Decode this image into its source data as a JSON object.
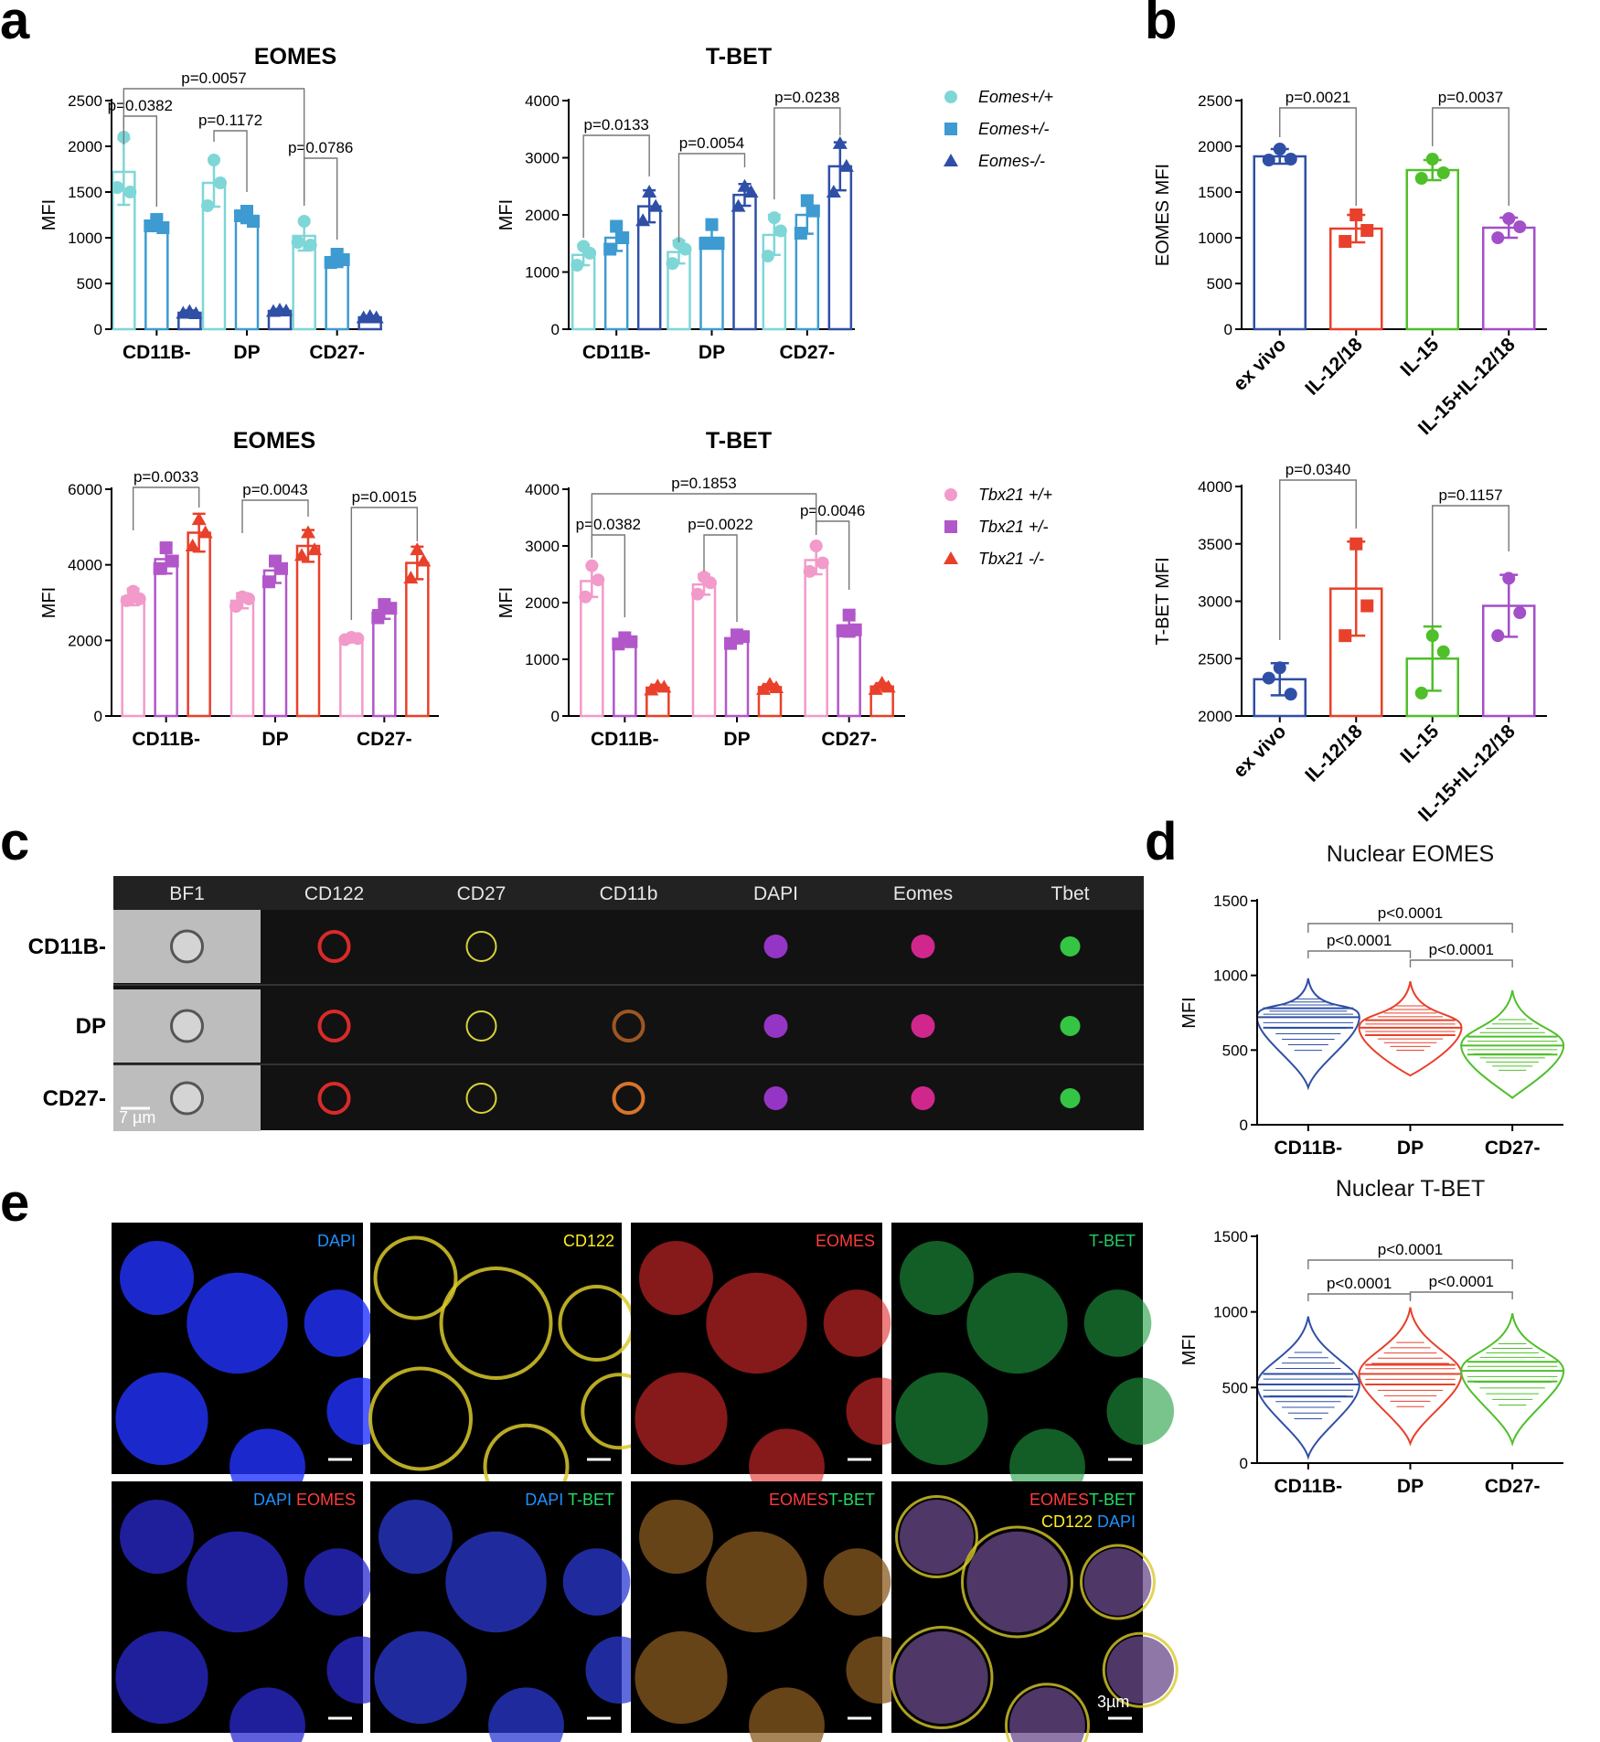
{
  "panels": {
    "a": "a",
    "b": "b",
    "c": "c",
    "d": "d",
    "e": "e"
  },
  "colors": {
    "eomes_wt": "#7fd6d6",
    "eomes_het": "#3d9bd1",
    "eomes_ko": "#2f4fa6",
    "tbx_wt": "#f29ac9",
    "tbx_het": "#b257c9",
    "tbx_ko": "#e8402a",
    "exvivo": "#2f4fa6",
    "il1218": "#e8402a",
    "il15": "#4fbf2a",
    "combo": "#a34fc9"
  },
  "chart_data": [
    {
      "id": "a1",
      "type": "bar",
      "title": "EOMES",
      "ylabel": "MFI",
      "ylim": [
        0,
        2500
      ],
      "yticks": [
        0,
        500,
        1000,
        1500,
        2000,
        2500
      ],
      "categories": [
        "CD11B-",
        "DP",
        "CD27-"
      ],
      "series": [
        {
          "name": "Eomes+/+",
          "values": [
            1720,
            1600,
            1020
          ],
          "sd": [
            360,
            260,
            160
          ],
          "points": [
            [
              2100,
              1550,
              1500
            ],
            [
              1850,
              1350,
              1600
            ],
            [
              1180,
              950,
              920
            ]
          ]
        },
        {
          "name": "Eomes+/-",
          "values": [
            1150,
            1240,
            770
          ],
          "sd": [
            70,
            80,
            90
          ],
          "points": [
            [
              1200,
              1130,
              1110
            ],
            [
              1290,
              1240,
              1180
            ],
            [
              820,
              730,
              760
            ]
          ]
        },
        {
          "name": "Eomes-/-",
          "values": [
            180,
            200,
            130
          ],
          "sd": [
            25,
            20,
            15
          ],
          "points": [
            [
              195,
              175,
              170
            ],
            [
              210,
              195,
              200
            ],
            [
              140,
              125,
              125
            ]
          ]
        }
      ],
      "pvalues": [
        "p=0.0382",
        "p=0.1172",
        "p=0.0786",
        "p=0.0057"
      ]
    },
    {
      "id": "a2",
      "type": "bar",
      "title": "T-BET",
      "ylabel": "MFI",
      "ylim": [
        0,
        4000
      ],
      "yticks": [
        0,
        1000,
        2000,
        3000,
        4000
      ],
      "categories": [
        "CD11B-",
        "DP",
        "CD27-"
      ],
      "series": [
        {
          "name": "Eomes+/+",
          "values": [
            1300,
            1350,
            1650
          ],
          "sd": [
            180,
            200,
            350
          ],
          "points": [
            [
              1450,
              1120,
              1330
            ],
            [
              1500,
              1150,
              1400
            ],
            [
              1950,
              1280,
              1720
            ]
          ]
        },
        {
          "name": "Eomes+/-",
          "values": [
            1600,
            1600,
            2000
          ],
          "sd": [
            230,
            180,
            330
          ],
          "points": [
            [
              1800,
              1400,
              1600
            ],
            [
              1830,
              1500,
              1500
            ],
            [
              2250,
              1680,
              2070
            ]
          ]
        },
        {
          "name": "Eomes-/-",
          "values": [
            2150,
            2350,
            2850
          ],
          "sd": [
            280,
            190,
            420
          ],
          "points": [
            [
              2400,
              1900,
              2150
            ],
            [
              2500,
              2150,
              2400
            ],
            [
              3250,
              2400,
              2850
            ]
          ]
        }
      ],
      "pvalues": [
        "p=0.0133",
        "p=0.0054",
        "p=0.0238"
      ]
    },
    {
      "id": "a3",
      "type": "bar",
      "title": "EOMES",
      "ylabel": "MFI",
      "ylim": [
        0,
        6000
      ],
      "yticks": [
        0,
        2000,
        4000,
        6000
      ],
      "categories": [
        "CD11B-",
        "DP",
        "CD27-"
      ],
      "series": [
        {
          "name": "Tbx21 +/+",
          "values": [
            3150,
            3050,
            2050
          ],
          "sd": [
            220,
            200,
            70
          ],
          "points": [
            [
              3300,
              3050,
              3100
            ],
            [
              3150,
              2900,
              3100
            ],
            [
              2080,
              2020,
              2050
            ]
          ]
        },
        {
          "name": "Tbx21 +/-",
          "values": [
            4150,
            3850,
            2800
          ],
          "sd": [
            380,
            330,
            230
          ],
          "points": [
            [
              4450,
              3900,
              4100
            ],
            [
              4100,
              3550,
              3900
            ],
            [
              2950,
              2600,
              2850
            ]
          ]
        },
        {
          "name": "Tbx21 -/-",
          "values": [
            4850,
            4500,
            4050
          ],
          "sd": [
            500,
            420,
            430
          ],
          "points": [
            [
              5200,
              4500,
              4850
            ],
            [
              4850,
              4250,
              4400
            ],
            [
              4400,
              3650,
              4100
            ]
          ]
        }
      ],
      "pvalues": [
        "p=0.0033",
        "p=0.0043",
        "p=0.0015"
      ]
    },
    {
      "id": "a4",
      "type": "bar",
      "title": "T-BET",
      "ylabel": "MFI",
      "ylim": [
        0,
        4000
      ],
      "yticks": [
        0,
        1000,
        2000,
        3000,
        4000
      ],
      "categories": [
        "CD11B-",
        "DP",
        "CD27-"
      ],
      "series": [
        {
          "name": "Tbx21 +/+",
          "values": [
            2380,
            2320,
            2750
          ],
          "sd": [
            280,
            180,
            250
          ],
          "points": [
            [
              2650,
              2100,
              2400
            ],
            [
              2450,
              2150,
              2350
            ],
            [
              3000,
              2550,
              2700
            ]
          ]
        },
        {
          "name": "Tbx21 +/-",
          "values": [
            1320,
            1370,
            1600
          ],
          "sd": [
            60,
            90,
            200
          ],
          "points": [
            [
              1380,
              1270,
              1310
            ],
            [
              1430,
              1280,
              1400
            ],
            [
              1780,
              1500,
              1520
            ]
          ]
        },
        {
          "name": "Tbx21 -/-",
          "values": [
            500,
            510,
            520
          ],
          "sd": [
            50,
            50,
            60
          ],
          "points": [
            [
              530,
              460,
              510
            ],
            [
              560,
              470,
              500
            ],
            [
              580,
              470,
              510
            ]
          ]
        }
      ],
      "pvalues": [
        "p=0.0382",
        "p=0.0022",
        "p=0.0046",
        "p=0.1853"
      ]
    },
    {
      "id": "b1",
      "type": "bar",
      "ylabel": "EOMES MFI",
      "ylim": [
        0,
        2500
      ],
      "yticks": [
        0,
        500,
        1000,
        1500,
        2000,
        2500
      ],
      "categories": [
        "ex vivo",
        "IL-12/18",
        "IL-15",
        "IL-15+IL-12/18"
      ],
      "values": [
        1890,
        1100,
        1740,
        1110
      ],
      "sd": [
        80,
        150,
        110,
        110
      ],
      "points": [
        [
          1970,
          1850,
          1860
        ],
        [
          1250,
          960,
          1080
        ],
        [
          1860,
          1650,
          1710
        ],
        [
          1210,
          1000,
          1120
        ]
      ],
      "pvalues": [
        "p=0.0021",
        "p=0.0037"
      ]
    },
    {
      "id": "b2",
      "type": "bar",
      "ylabel": "T-BET MFI",
      "ylim": [
        2000,
        4000
      ],
      "yticks": [
        2000,
        2500,
        3000,
        3500,
        4000
      ],
      "categories": [
        "ex vivo",
        "IL-12/18",
        "IL-15",
        "IL-15+IL-12/18"
      ],
      "values": [
        2320,
        3110,
        2500,
        2960
      ],
      "sd": [
        140,
        410,
        280,
        270
      ],
      "points": [
        [
          2420,
          2330,
          2190
        ],
        [
          3500,
          2700,
          2960
        ],
        [
          2700,
          2200,
          2560
        ],
        [
          3200,
          2700,
          2900
        ]
      ],
      "pvalues": [
        "p=0.0340",
        "p=0.1157"
      ]
    },
    {
      "id": "d1",
      "type": "violin",
      "title": "Nuclear EOMES",
      "ylabel": "MFI",
      "ylim": [
        0,
        1500
      ],
      "yticks": [
        0,
        500,
        1000,
        1500
      ],
      "categories": [
        "CD11B-",
        "DP",
        "CD27-"
      ],
      "series": [
        {
          "min": 250,
          "q1": 650,
          "median": 720,
          "q3": 780,
          "max": 980
        },
        {
          "min": 330,
          "q1": 600,
          "median": 650,
          "q3": 700,
          "max": 960
        },
        {
          "min": 180,
          "q1": 470,
          "median": 530,
          "q3": 590,
          "max": 900
        }
      ],
      "pvalues": [
        "p<0.0001",
        "p<0.0001",
        "p<0.0001"
      ]
    },
    {
      "id": "d2",
      "type": "violin",
      "title": "Nuclear T-BET",
      "ylabel": "MFI",
      "ylim": [
        0,
        1500
      ],
      "yticks": [
        0,
        500,
        1000,
        1500
      ],
      "categories": [
        "CD11B-",
        "DP",
        "CD27-"
      ],
      "series": [
        {
          "min": 40,
          "q1": 440,
          "median": 520,
          "q3": 590,
          "max": 970
        },
        {
          "min": 130,
          "q1": 520,
          "median": 590,
          "q3": 650,
          "max": 1030
        },
        {
          "min": 130,
          "q1": 540,
          "median": 610,
          "q3": 670,
          "max": 990
        }
      ],
      "pvalues": [
        "p<0.0001",
        "p<0.0001",
        "p<0.0001"
      ]
    }
  ],
  "panel_c": {
    "channels": [
      "BF1",
      "CD122",
      "CD27",
      "CD11b",
      "DAPI",
      "Eomes",
      "Tbet"
    ],
    "rows": [
      "CD11B-",
      "DP",
      "CD27-"
    ],
    "scale": "7 µm"
  },
  "panel_e": {
    "top": [
      "DAPI",
      "CD122",
      "EOMES",
      "T-BET"
    ],
    "bottom": [
      [
        [
          "DAPI",
          "#1e90ff"
        ],
        [
          "EOMES",
          "#ff3b3b"
        ]
      ],
      [
        [
          "DAPI",
          "#1e90ff"
        ],
        [
          "T-BET",
          "#22dd66"
        ]
      ],
      [
        [
          "EOMES",
          "#ff3b3b"
        ],
        [
          "T-BET",
          "#22dd66"
        ]
      ],
      [
        [
          "EOMES",
          "#ff3b3b"
        ],
        [
          "T-BET",
          "#22dd66"
        ]
      ]
    ],
    "extra": [
      [
        "CD122",
        "#ffee22"
      ],
      [
        "DAPI",
        "#1e90ff"
      ]
    ],
    "scale": "3µm"
  }
}
